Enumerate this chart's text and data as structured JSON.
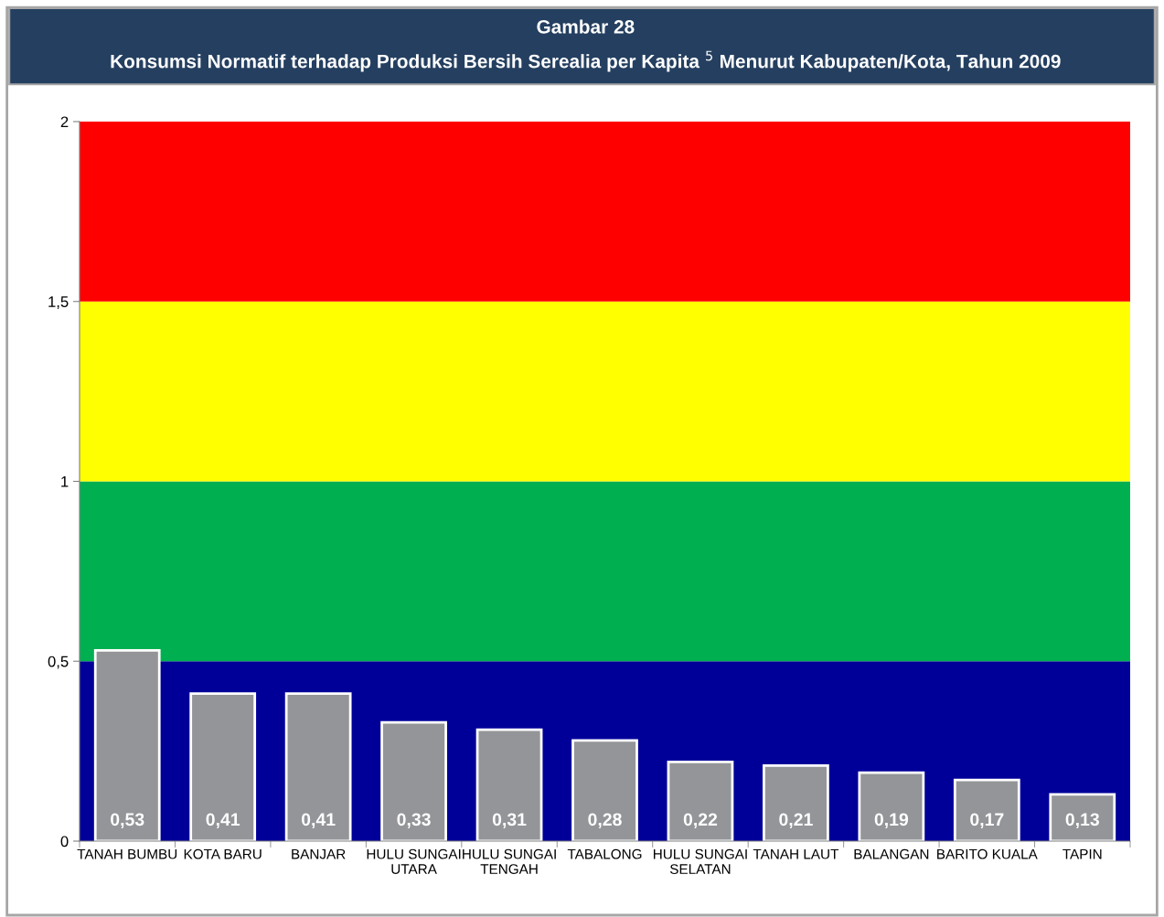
{
  "chart_data": {
    "type": "bar",
    "title": "Gambar 28",
    "subtitle": "Konsumsi Normatif terhadap Produksi Bersih Serealia per Kapita $^{5}$ Menurut Kabupaten/Kota, Tahun 2009",
    "categories": [
      "TANAH BUMBU",
      "KOTA BARU",
      "BANJAR",
      "HULU SUNGAI UTARA",
      "HULU SUNGAI TENGAH",
      "TABALONG",
      "HULU SUNGAI SELATAN",
      "TANAH LAUT",
      "BALANGAN",
      "BARITO KUALA",
      "TAPIN"
    ],
    "values": [
      0.53,
      0.41,
      0.41,
      0.33,
      0.31,
      0.28,
      0.22,
      0.21,
      0.19,
      0.17,
      0.13
    ],
    "value_labels": [
      "0,53",
      "0,41",
      "0,41",
      "0,33",
      "0,31",
      "0,28",
      "0,22",
      "0,21",
      "0,19",
      "0,17",
      "0,13"
    ],
    "color": "#939598",
    "ylim": [
      0,
      2
    ],
    "yticks": [
      0,
      {
        "value": 0.5,
        "label": "0,5"
      },
      1,
      {
        "value": 1.5,
        "label": "1,5"
      },
      2
    ],
    "bands": [
      {
        "axis": "y",
        "from": 0,
        "to": 0.5,
        "color": "#000099"
      },
      {
        "axis": "y",
        "from": 0.5,
        "to": 1,
        "color": "#00b050"
      },
      {
        "axis": "y",
        "from": 1,
        "to": 1.5,
        "color": "#ffff00"
      },
      {
        "axis": "y",
        "from": 1.5,
        "to": 2,
        "color": "#ff0000"
      }
    ],
    "grid": false,
    "legend": false
  }
}
